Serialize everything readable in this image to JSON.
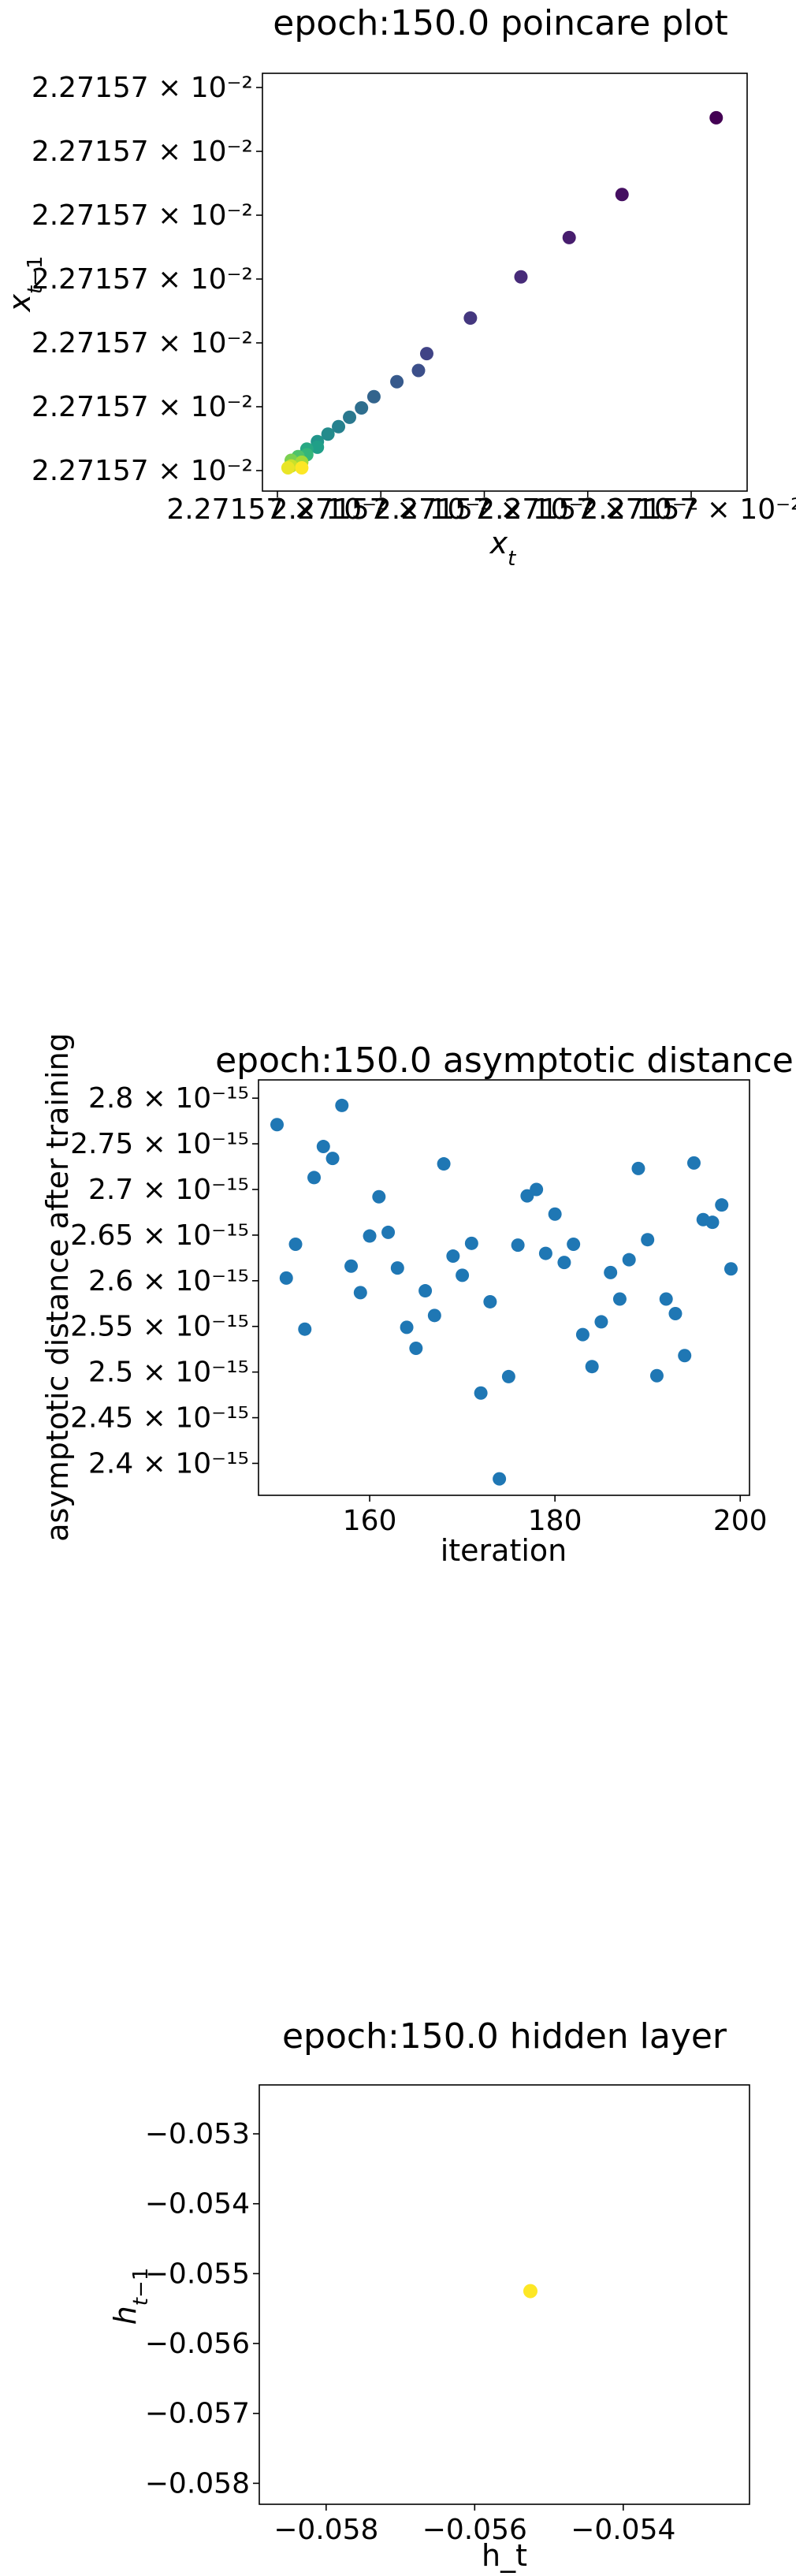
{
  "chart_data": [
    {
      "type": "scatter",
      "title": "epoch:150.0 poincare plot",
      "xlabel": "x_t",
      "ylabel": "x_{t−1}",
      "colormap": "viridis",
      "yticks": [
        "2.27157 × 10⁻²",
        "2.27157 × 10⁻²",
        "2.27157 × 10⁻²",
        "2.27157 × 10⁻²",
        "2.27157 × 10⁻²",
        "2.27157 × 10⁻²",
        "2.27157 × 10⁻²"
      ],
      "xticks": [
        "2.27157 × 10⁻²",
        "2.27157 × 10⁻²",
        "2.27157 × 10⁻²",
        "2.27157 × 10⁻²",
        "2.27157 × 10⁻²"
      ],
      "grid": false,
      "points": [
        {
          "x": 0.955,
          "y": 0.955,
          "c": 0.0
        },
        {
          "x": 0.75,
          "y": 0.75,
          "c": 0.04
        },
        {
          "x": 0.635,
          "y": 0.635,
          "c": 0.08
        },
        {
          "x": 0.53,
          "y": 0.53,
          "c": 0.12
        },
        {
          "x": 0.42,
          "y": 0.42,
          "c": 0.16
        },
        {
          "x": 0.325,
          "y": 0.325,
          "c": 0.2
        },
        {
          "x": 0.307,
          "y": 0.28,
          "c": 0.24
        },
        {
          "x": 0.26,
          "y": 0.25,
          "c": 0.28
        },
        {
          "x": 0.21,
          "y": 0.21,
          "c": 0.32
        },
        {
          "x": 0.183,
          "y": 0.18,
          "c": 0.36
        },
        {
          "x": 0.157,
          "y": 0.155,
          "c": 0.4
        },
        {
          "x": 0.133,
          "y": 0.13,
          "c": 0.44
        },
        {
          "x": 0.11,
          "y": 0.11,
          "c": 0.48
        },
        {
          "x": 0.087,
          "y": 0.09,
          "c": 0.52
        },
        {
          "x": 0.087,
          "y": 0.075,
          "c": 0.56
        },
        {
          "x": 0.064,
          "y": 0.07,
          "c": 0.6
        },
        {
          "x": 0.064,
          "y": 0.055,
          "c": 0.66
        },
        {
          "x": 0.045,
          "y": 0.05,
          "c": 0.72
        },
        {
          "x": 0.03,
          "y": 0.04,
          "c": 0.8
        },
        {
          "x": 0.053,
          "y": 0.035,
          "c": 0.86
        },
        {
          "x": 0.03,
          "y": 0.025,
          "c": 0.92
        },
        {
          "x": 0.023,
          "y": 0.02,
          "c": 0.97
        },
        {
          "x": 0.053,
          "y": 0.02,
          "c": 1.0
        }
      ]
    },
    {
      "type": "scatter",
      "title": "epoch:150.0 asymptotic distance",
      "xlabel": "iteration",
      "ylabel": "asymptotic distance after training",
      "xlim": [
        148,
        201
      ],
      "ylim": [
        2.365,
        2.82
      ],
      "xticks": [
        160,
        180,
        200
      ],
      "ytick_values": [
        2.4,
        2.45,
        2.5,
        2.55,
        2.6,
        2.65,
        2.7,
        2.75,
        2.8
      ],
      "ytick_labels": [
        "2.4 × 10⁻¹⁵",
        "2.45 × 10⁻¹⁵",
        "2.5 × 10⁻¹⁵",
        "2.55 × 10⁻¹⁵",
        "2.6 × 10⁻¹⁵",
        "2.65 × 10⁻¹⁵",
        "2.7 × 10⁻¹⁵",
        "2.75 × 10⁻¹⁵",
        "2.8 × 10⁻¹⁵"
      ],
      "y_unit_exponent": -15,
      "color": "#1f77b4",
      "grid": false,
      "x": [
        150,
        151,
        152,
        153,
        154,
        155,
        156,
        157,
        158,
        159,
        160,
        161,
        162,
        163,
        164,
        165,
        166,
        167,
        168,
        169,
        170,
        171,
        172,
        173,
        174,
        175,
        176,
        177,
        178,
        179,
        180,
        181,
        182,
        183,
        184,
        185,
        186,
        187,
        188,
        189,
        190,
        191,
        192,
        193,
        194,
        195,
        196,
        197,
        198,
        199
      ],
      "y": [
        2.771,
        2.603,
        2.64,
        2.547,
        2.713,
        2.747,
        2.734,
        2.792,
        2.616,
        2.587,
        2.649,
        2.692,
        2.653,
        2.614,
        2.549,
        2.526,
        2.589,
        2.562,
        2.728,
        2.627,
        2.606,
        2.641,
        2.477,
        2.577,
        2.383,
        2.495,
        2.639,
        2.693,
        2.7,
        2.63,
        2.673,
        2.62,
        2.64,
        2.541,
        2.506,
        2.555,
        2.609,
        2.58,
        2.623,
        2.723,
        2.645,
        2.496,
        2.58,
        2.564,
        2.518,
        2.729,
        2.667,
        2.664,
        2.683,
        2.613
      ]
    },
    {
      "type": "scatter",
      "title": "epoch:150.0 hidden layer",
      "xlabel": "h_t",
      "ylabel": "h_{t−1}",
      "xlim": [
        -0.0589,
        -0.0523
      ],
      "ylim": [
        -0.0583,
        -0.0523
      ],
      "xticks": [
        -0.058,
        -0.056,
        -0.054
      ],
      "xtick_labels": [
        "−0.058",
        "−0.056",
        "−0.054"
      ],
      "yticks": [
        -0.053,
        -0.054,
        -0.055,
        -0.056,
        -0.057,
        -0.058
      ],
      "ytick_labels": [
        "−0.053",
        "−0.054",
        "−0.055",
        "−0.056",
        "−0.057",
        "−0.058"
      ],
      "grid": false,
      "points": [
        {
          "x": -0.05525,
          "y": -0.05525,
          "color": "#fde725"
        }
      ]
    }
  ]
}
